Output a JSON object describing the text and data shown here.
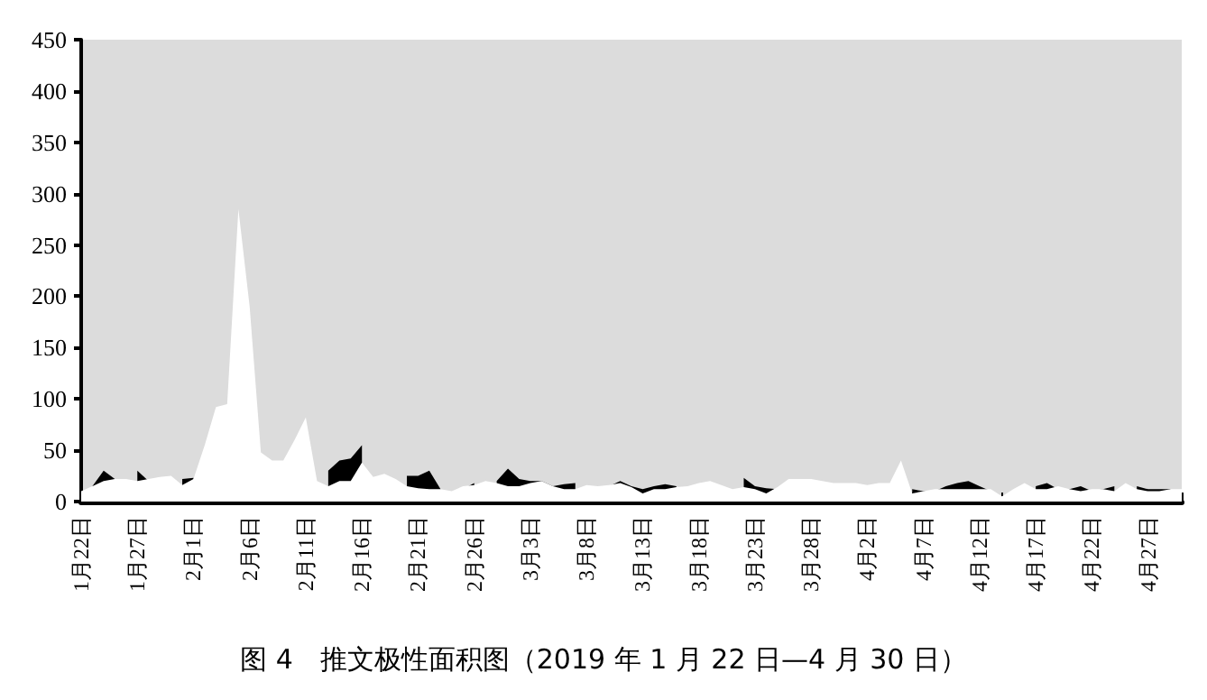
{
  "chart_data": {
    "type": "area",
    "title": "图 4　推文极性面积图（2019 年 1 月 22 日—4 月 30 日）",
    "categories": [
      "1月22日",
      null,
      null,
      null,
      null,
      "1月27日",
      null,
      null,
      null,
      null,
      "2月1日",
      null,
      null,
      null,
      null,
      "2月6日",
      null,
      null,
      null,
      null,
      "2月11日",
      null,
      null,
      null,
      null,
      "2月16日",
      null,
      null,
      null,
      null,
      "2月21日",
      null,
      null,
      null,
      null,
      "2月26日",
      null,
      null,
      null,
      null,
      "3月3日",
      null,
      null,
      null,
      null,
      "3月8日",
      null,
      null,
      null,
      null,
      "3月13日",
      null,
      null,
      null,
      null,
      "3月18日",
      null,
      null,
      null,
      null,
      "3月23日",
      null,
      null,
      null,
      null,
      "3月28日",
      null,
      null,
      null,
      null,
      "4月2日",
      null,
      null,
      null,
      null,
      "4月7日",
      null,
      null,
      null,
      null,
      "4月12日",
      null,
      null,
      null,
      null,
      "4月17日",
      null,
      null,
      null,
      null,
      "4月22日",
      null,
      null,
      null,
      null,
      "4月27日",
      null,
      null,
      null
    ],
    "series": [
      {
        "color": "#000000",
        "values": [
          null,
          15,
          30,
          22,
          null,
          30,
          20,
          null,
          null,
          22,
          23,
          null,
          null,
          null,
          null,
          null,
          null,
          null,
          null,
          null,
          null,
          null,
          30,
          40,
          42,
          55,
          null,
          null,
          null,
          25,
          25,
          30,
          12,
          null,
          12,
          18,
          null,
          20,
          32,
          22,
          20,
          20,
          15,
          17,
          18,
          null,
          null,
          15,
          20,
          15,
          12,
          15,
          17,
          15,
          null,
          null,
          null,
          null,
          null,
          23,
          15,
          13,
          12,
          null,
          null,
          null,
          null,
          null,
          null,
          null,
          null,
          null,
          null,
          null,
          12,
          10,
          10,
          15,
          18,
          20,
          15,
          10,
          null,
          null,
          null,
          15,
          18,
          12,
          12,
          15,
          10,
          12,
          15,
          null,
          15,
          12,
          12,
          12,
          null
        ]
      },
      {
        "color": "#ffffff",
        "values": [
          10,
          15,
          20,
          22,
          22,
          20,
          22,
          24,
          25,
          16,
          22,
          55,
          92,
          95,
          285,
          190,
          48,
          40,
          40,
          60,
          82,
          20,
          15,
          20,
          20,
          38,
          24,
          27,
          22,
          15,
          13,
          12,
          12,
          10,
          15,
          16,
          20,
          18,
          15,
          15,
          18,
          20,
          15,
          12,
          12,
          16,
          15,
          16,
          18,
          14,
          8,
          12,
          12,
          14,
          15,
          18,
          20,
          16,
          12,
          14,
          12,
          8,
          14,
          22,
          22,
          22,
          20,
          18,
          18,
          18,
          16,
          18,
          18,
          40,
          8,
          10,
          12,
          12,
          12,
          12,
          12,
          12,
          5,
          12,
          18,
          12,
          12,
          15,
          12,
          10,
          12,
          12,
          10,
          18,
          12,
          10,
          10,
          12,
          12
        ]
      }
    ],
    "ylim": [
      0,
      450
    ],
    "yticks": [
      0,
      50,
      100,
      150,
      200,
      250,
      300,
      350,
      400,
      450
    ],
    "grid": false
  }
}
